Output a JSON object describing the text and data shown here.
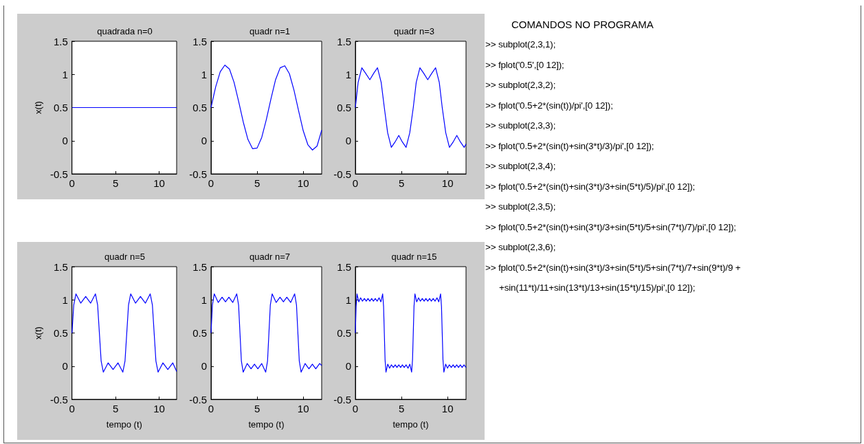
{
  "chart_data": [
    {
      "type": "line",
      "title": "quadrada n=0",
      "ylabel": "x(t)",
      "marker": "none",
      "xlim": [
        0,
        12
      ],
      "xticks": [
        0,
        5,
        10
      ],
      "ylim": [
        -0.5,
        1.5
      ],
      "yticks": [
        -0.5,
        0,
        0.5,
        1,
        1.5
      ],
      "series": [
        {
          "color": "#0000ff",
          "x": [
            0,
            12
          ],
          "values": [
            0.5,
            0.5
          ]
        }
      ]
    },
    {
      "type": "line",
      "title": "quadr n=1",
      "marker": "none",
      "xlim": [
        0,
        12
      ],
      "xticks": [
        0,
        5,
        10
      ],
      "ylim": [
        -0.5,
        1.5
      ],
      "yticks": [
        -0.5,
        0,
        0.5,
        1,
        1.5
      ],
      "series": [
        {
          "color": "#0000ff",
          "x": [
            0,
            0.5,
            1,
            1.5,
            2,
            2.5,
            3,
            3.5,
            4,
            4.5,
            5,
            5.5,
            6,
            6.5,
            7,
            7.5,
            8,
            8.5,
            9,
            9.5,
            10,
            10.5,
            11,
            11.5,
            12
          ],
          "values": [
            0.5,
            0.81,
            1.04,
            1.14,
            1.08,
            0.88,
            0.59,
            0.28,
            0.02,
            -0.12,
            -0.11,
            0.05,
            0.32,
            0.63,
            0.92,
            1.1,
            1.13,
            1.01,
            0.76,
            0.45,
            0.15,
            -0.06,
            -0.14,
            -0.08,
            0.16
          ]
        }
      ]
    },
    {
      "type": "line",
      "title": "quadr n=3",
      "marker": "none",
      "xlim": [
        0,
        12
      ],
      "xticks": [
        0,
        5,
        10
      ],
      "ylim": [
        -0.5,
        1.5
      ],
      "yticks": [
        -0.5,
        0,
        0.5,
        1,
        1.5
      ],
      "series": [
        {
          "color": "#0000ff",
          "x": [
            0,
            0.3,
            0.7,
            1.1,
            1.57,
            2,
            2.4,
            2.8,
            3.14,
            3.5,
            3.9,
            4.3,
            4.71,
            5.1,
            5.5,
            5.9,
            6.28,
            6.6,
            7,
            7.4,
            7.85,
            8.3,
            8.7,
            9.1,
            9.42,
            9.8,
            10.2,
            10.6,
            11,
            11.4,
            11.8,
            12
          ],
          "values": [
            0.5,
            0.88,
            1.1,
            1.02,
            0.92,
            1.02,
            1.1,
            0.88,
            0.5,
            0.12,
            -0.1,
            -0.02,
            0.08,
            -0.02,
            -0.1,
            0.12,
            0.5,
            0.88,
            1.1,
            1.02,
            0.92,
            1.02,
            1.1,
            0.88,
            0.5,
            0.12,
            -0.1,
            -0.02,
            0.08,
            -0.02,
            -0.1,
            -0.05
          ]
        }
      ]
    },
    {
      "type": "line",
      "title": "quadr n=5",
      "xlabel": "tempo (t)",
      "ylabel": "x(t)",
      "marker": "none",
      "xlim": [
        0,
        12
      ],
      "xticks": [
        0,
        5,
        10
      ],
      "ylim": [
        -0.5,
        1.5
      ],
      "yticks": [
        -0.5,
        0,
        0.5,
        1,
        1.5
      ],
      "series": [
        {
          "color": "#0000ff",
          "x": [
            0,
            0.2,
            0.45,
            1,
            1.57,
            2.14,
            2.69,
            2.94,
            3.14,
            3.34,
            3.59,
            4.14,
            4.71,
            5.28,
            5.83,
            6.08,
            6.28,
            6.48,
            6.73,
            7.28,
            7.85,
            8.42,
            8.97,
            9.22,
            9.42,
            9.62,
            9.87,
            10.42,
            10.99,
            11.56,
            12
          ],
          "values": [
            0.5,
            0.92,
            1.09,
            0.95,
            1.05,
            0.95,
            1.09,
            0.92,
            0.5,
            0.08,
            -0.09,
            0.05,
            -0.05,
            0.05,
            -0.09,
            0.08,
            0.5,
            0.92,
            1.09,
            0.95,
            1.05,
            0.95,
            1.09,
            0.92,
            0.5,
            0.08,
            -0.09,
            0.05,
            -0.05,
            0.05,
            -0.08
          ]
        }
      ]
    },
    {
      "type": "line",
      "title": "quadr n=7",
      "xlabel": "tempo (t)",
      "marker": "none",
      "xlim": [
        0,
        12
      ],
      "xticks": [
        0,
        5,
        10
      ],
      "ylim": [
        -0.5,
        1.5
      ],
      "yticks": [
        -0.5,
        0,
        0.5,
        1,
        1.5
      ],
      "series": [
        {
          "color": "#0000ff",
          "x": [
            0,
            0.15,
            0.35,
            0.78,
            1.2,
            1.57,
            1.94,
            2.36,
            2.79,
            2.99,
            3.14,
            3.29,
            3.49,
            3.92,
            4.34,
            4.71,
            5.08,
            5.5,
            5.93,
            6.13,
            6.28,
            6.43,
            6.63,
            7.06,
            7.48,
            7.85,
            8.22,
            8.64,
            9.07,
            9.27,
            9.42,
            9.57,
            9.77,
            10.2,
            10.62,
            10.99,
            11.36,
            11.78,
            12
          ],
          "values": [
            0.5,
            0.92,
            1.09,
            0.96,
            1.04,
            0.97,
            1.04,
            0.96,
            1.09,
            0.92,
            0.5,
            0.08,
            -0.09,
            0.04,
            -0.04,
            0.03,
            -0.04,
            0.04,
            -0.09,
            0.08,
            0.5,
            0.92,
            1.09,
            0.96,
            1.04,
            0.97,
            1.04,
            0.96,
            1.09,
            0.92,
            0.5,
            0.08,
            -0.09,
            0.04,
            -0.04,
            0.03,
            -0.04,
            0.04,
            0.01
          ]
        }
      ]
    },
    {
      "type": "line",
      "title": "quadr n=15",
      "xlabel": "tempo (t)",
      "marker": "none",
      "xlim": [
        0,
        12
      ],
      "xticks": [
        0,
        5,
        10
      ],
      "ylim": [
        -0.5,
        1.5
      ],
      "yticks": [
        -0.5,
        0,
        0.5,
        1,
        1.5
      ],
      "series": [
        {
          "color": "#0000ff",
          "x": [
            0,
            0.08,
            0.18,
            0.37,
            0.57,
            0.77,
            0.98,
            1.18,
            1.37,
            1.57,
            1.77,
            1.96,
            2.16,
            2.36,
            2.57,
            2.77,
            2.96,
            3.06,
            3.14,
            3.22,
            3.32,
            3.51,
            3.71,
            3.91,
            4.12,
            4.32,
            4.51,
            4.71,
            4.91,
            5.1,
            5.3,
            5.5,
            5.71,
            5.91,
            6.1,
            6.2,
            6.28,
            6.36,
            6.46,
            6.65,
            6.85,
            7.05,
            7.26,
            7.46,
            7.65,
            7.85,
            8.05,
            8.24,
            8.44,
            8.64,
            8.85,
            9.05,
            9.24,
            9.34,
            9.42,
            9.5,
            9.6,
            9.79,
            9.99,
            10.19,
            10.4,
            10.6,
            10.79,
            10.99,
            11.19,
            11.38,
            11.58,
            11.78,
            12
          ],
          "values": [
            0.5,
            0.9,
            1.09,
            0.97,
            1.03,
            0.98,
            1.02,
            0.98,
            1.02,
            0.98,
            1.02,
            0.98,
            1.02,
            0.98,
            1.03,
            0.97,
            1.09,
            0.9,
            0.5,
            0.1,
            -0.09,
            0.03,
            -0.03,
            0.02,
            -0.02,
            0.02,
            -0.02,
            0.02,
            -0.02,
            0.02,
            -0.02,
            0.02,
            -0.03,
            0.03,
            -0.09,
            0.1,
            0.5,
            0.9,
            1.09,
            0.97,
            1.03,
            0.98,
            1.02,
            0.98,
            1.02,
            0.98,
            1.02,
            0.98,
            1.02,
            0.98,
            1.03,
            0.97,
            1.09,
            0.9,
            0.5,
            0.1,
            -0.09,
            0.03,
            -0.03,
            0.02,
            -0.02,
            0.02,
            -0.02,
            0.02,
            -0.02,
            0.02,
            -0.02,
            0.02,
            -0.02
          ]
        }
      ]
    },
    {
      "type": "other",
      "title": "COMANDOS NO PROGRAMA",
      "annotations": [
        ">> subplot(2,3,1);",
        ">> fplot('0.5',[0 12]);",
        ">> subplot(2,3,2);",
        ">> fplot('0.5+2*(sin(t))/pi',[0 12]);",
        ">> subplot(2,3,3);",
        ">> fplot('0.5+2*(sin(t)+sin(3*t)/3)/pi',[0 12]);",
        ">> subplot(2,3,4);",
        ">> fplot('0.5+2*(sin(t)+sin(3*t)/3+sin(5*t)/5)/pi',[0 12]);",
        ">> subplot(2,3,5);",
        ">> fplot('0.5+2*(sin(t)+sin(3*t)/3+sin(5*t)/5+sin(7*t)/7)/pi',[0 12]);",
        ">> subplot(2,3,6);",
        ">> fplot('0.5+2*(sin(t)+sin(3*t)/3+sin(5*t)/5+sin(7*t)/7+sin(9*t)/9 +",
        "+sin(11*t)/11+sin(13*t)/13+sin(15*t)/15)/pi',[0 12]);"
      ]
    }
  ]
}
